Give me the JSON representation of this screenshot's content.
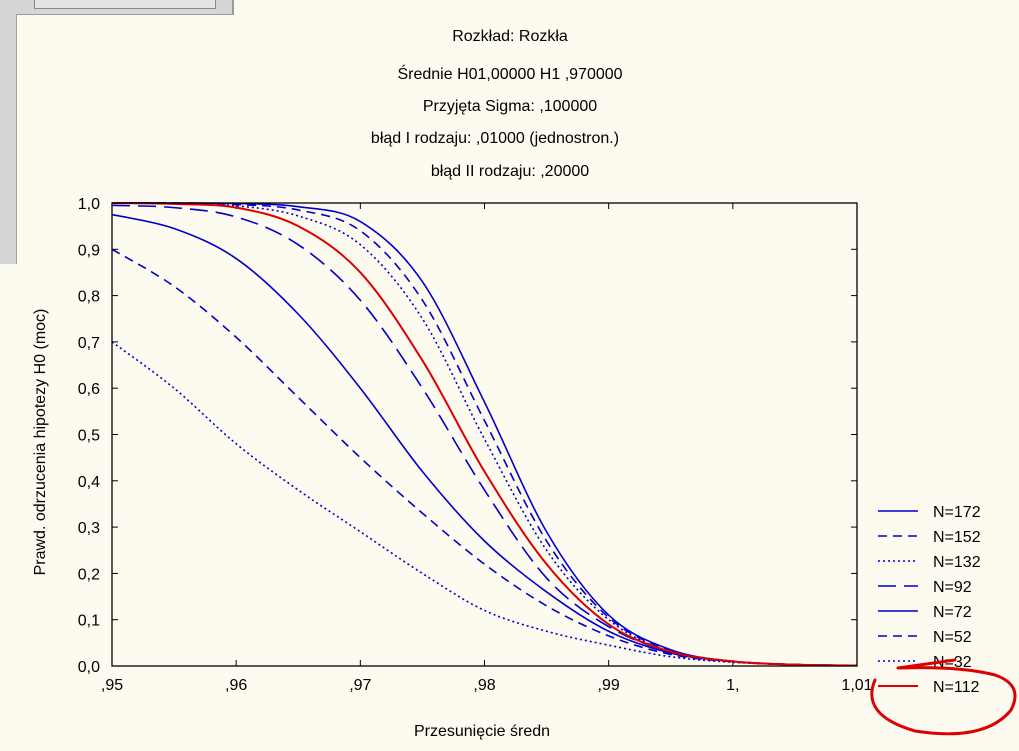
{
  "chart_data": {
    "type": "line",
    "title_lines": [
      "Rozkład: Rozkła",
      "Średnie H01,00000     H1 ,970000",
      "Przyjęta Sigma: ,100000",
      "błąd I rodzaju: ,01000  (jednostron.)",
      "błąd II rodzaju: ,20000"
    ],
    "xlabel": "Przesunięcie średn",
    "ylabel": "Prawd. odrzucenia hipotezy H0 (moc)",
    "xlim": [
      0.95,
      1.01
    ],
    "ylim": [
      0.0,
      1.0
    ],
    "x_ticks": [
      0.95,
      0.96,
      0.97,
      0.98,
      0.99,
      1.0,
      1.01
    ],
    "x_tick_labels": [
      ",95",
      ",96",
      ",97",
      ",98",
      ",99",
      "1,",
      "1,01"
    ],
    "y_ticks": [
      0.0,
      0.1,
      0.2,
      0.3,
      0.4,
      0.5,
      0.6,
      0.7,
      0.8,
      0.9,
      1.0
    ],
    "y_tick_labels": [
      "0,0",
      "0,1",
      "0,2",
      "0,3",
      "0,4",
      "0,5",
      "0,6",
      "0,7",
      "0,8",
      "0,9",
      "1,0"
    ],
    "grid": false,
    "legend_position": "right",
    "x": [
      0.95,
      0.955,
      0.96,
      0.965,
      0.97,
      0.975,
      0.98,
      0.985,
      0.99,
      0.995,
      1.0,
      1.005,
      1.01
    ],
    "series": [
      {
        "name": "N=172",
        "color": "#0000cc",
        "dash": "solid",
        "values": [
          1.0,
          1.0,
          0.999,
          0.992,
          0.96,
          0.83,
          0.57,
          0.29,
          0.11,
          0.035,
          0.01,
          0.003,
          0.001
        ]
      },
      {
        "name": "N=152",
        "color": "#0000cc",
        "dash": "dashed",
        "values": [
          1.0,
          1.0,
          0.997,
          0.985,
          0.94,
          0.79,
          0.53,
          0.27,
          0.105,
          0.033,
          0.01,
          0.003,
          0.001
        ]
      },
      {
        "name": "N=132",
        "color": "#0000cc",
        "dash": "dotted",
        "values": [
          1.0,
          0.999,
          0.994,
          0.972,
          0.91,
          0.75,
          0.49,
          0.25,
          0.1,
          0.03,
          0.01,
          0.003,
          0.001
        ]
      },
      {
        "name": "N=92",
        "color": "#0000cc",
        "dash": "longdash",
        "values": [
          0.995,
          0.99,
          0.97,
          0.91,
          0.79,
          0.6,
          0.38,
          0.19,
          0.085,
          0.03,
          0.01,
          0.003,
          0.001
        ]
      },
      {
        "name": "N=72",
        "color": "#0000cc",
        "dash": "solid",
        "values": [
          0.975,
          0.945,
          0.88,
          0.76,
          0.6,
          0.42,
          0.27,
          0.16,
          0.075,
          0.028,
          0.01,
          0.003,
          0.001
        ]
      },
      {
        "name": "N=52",
        "color": "#0000cc",
        "dash": "dashed",
        "values": [
          0.9,
          0.82,
          0.71,
          0.58,
          0.45,
          0.33,
          0.22,
          0.13,
          0.065,
          0.025,
          0.009,
          0.003,
          0.001
        ]
      },
      {
        "name": "N=32",
        "color": "#0000cc",
        "dash": "dotted",
        "values": [
          0.7,
          0.6,
          0.48,
          0.38,
          0.29,
          0.2,
          0.12,
          0.075,
          0.045,
          0.02,
          0.008,
          0.003,
          0.001
        ]
      },
      {
        "name": "N=112",
        "color": "#dd0000",
        "dash": "solid",
        "values": [
          1.0,
          0.998,
          0.99,
          0.95,
          0.85,
          0.66,
          0.42,
          0.22,
          0.09,
          0.031,
          0.01,
          0.003,
          0.001
        ]
      }
    ],
    "annotation_color": "#dd0000"
  }
}
